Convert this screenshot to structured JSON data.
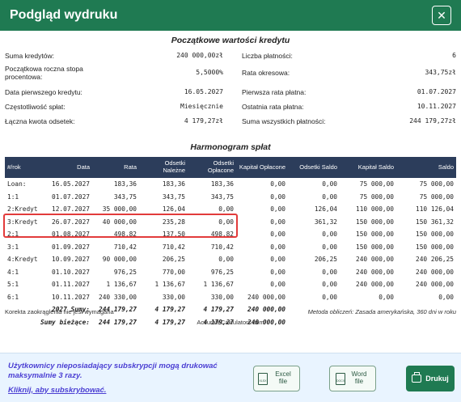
{
  "window": {
    "title": "Podgląd wydruku",
    "close_glyph": "✕"
  },
  "summary": {
    "title": "Początkowe wartości kredytu",
    "left": [
      {
        "label": "Suma kredytów:",
        "value": "240 000,00zł"
      },
      {
        "label": "Początkowa roczna stopa procentowa:",
        "value": "5,5000%"
      },
      {
        "label": "Data pierwszego kredytu:",
        "value": "16.05.2027"
      },
      {
        "label": "Częstotliwość spłat:",
        "value": "Miesięcznie"
      },
      {
        "label": "Łączna kwota odsetek:",
        "value": "4 179,27zł"
      }
    ],
    "right": [
      {
        "label": "Liczba płatności:",
        "value": "6"
      },
      {
        "label": "Rata okresowa:",
        "value": "343,75zł"
      },
      {
        "label": "Pierwsza rata płatna:",
        "value": "01.07.2027"
      },
      {
        "label": "Ostatnia rata płatna:",
        "value": "10.11.2027"
      },
      {
        "label": "Suma wszystkich płatności:",
        "value": "244 179,27zł"
      }
    ]
  },
  "schedule": {
    "title": "Harmonogram spłat",
    "headers": [
      "#/rok",
      "Data",
      "Rata",
      "Odsetki Należne",
      "Odsetki Opłacone",
      "Kapitał Opłacone",
      "Odsetki Saldo",
      "Kapitał Saldo",
      "Saldo"
    ],
    "rows": [
      [
        "Loan:",
        "16.05.2027",
        "183,36",
        "183,36",
        "183,36",
        "0,00",
        "0,00",
        "75 000,00",
        "75 000,00"
      ],
      [
        "1:1",
        "01.07.2027",
        "343,75",
        "343,75",
        "343,75",
        "0,00",
        "0,00",
        "75 000,00",
        "75 000,00"
      ],
      [
        "2:Kredyt",
        "12.07.2027",
        "35 000,00",
        "126,04",
        "0,00",
        "0,00",
        "126,04",
        "110 000,00",
        "110 126,04"
      ],
      [
        "3:Kredyt",
        "26.07.2027",
        "40 000,00",
        "235,28",
        "0,00",
        "0,00",
        "361,32",
        "150 000,00",
        "150 361,32"
      ],
      [
        "2:1",
        "01.08.2027",
        "498,82",
        "137,50",
        "498,82",
        "0,00",
        "0,00",
        "150 000,00",
        "150 000,00"
      ],
      [
        "3:1",
        "01.09.2027",
        "710,42",
        "710,42",
        "710,42",
        "0,00",
        "0,00",
        "150 000,00",
        "150 000,00"
      ],
      [
        "4:Kredyt",
        "10.09.2027",
        "90 000,00",
        "206,25",
        "0,00",
        "0,00",
        "206,25",
        "240 000,00",
        "240 206,25"
      ],
      [
        "4:1",
        "01.10.2027",
        "976,25",
        "770,00",
        "976,25",
        "0,00",
        "0,00",
        "240 000,00",
        "240 000,00"
      ],
      [
        "5:1",
        "01.11.2027",
        "1 136,67",
        "1 136,67",
        "1 136,67",
        "0,00",
        "0,00",
        "240 000,00",
        "240 000,00"
      ],
      [
        "6:1",
        "10.11.2027",
        "240 330,00",
        "330,00",
        "330,00",
        "240 000,00",
        "0,00",
        "0,00",
        "0,00"
      ]
    ],
    "sums": [
      {
        "label": "2027 Sumy:",
        "values": [
          "244 179,27",
          "4 179,27",
          "4 179,27",
          "240 000,00"
        ]
      },
      {
        "label": "Sumy bieżące:",
        "values": [
          "244 179,27",
          "4 179,27",
          "4 179,27",
          "240 000,00"
        ]
      }
    ]
  },
  "footer": {
    "rounding_note": "Korekta zaokrąglenia nie jest wymagana",
    "method_note": "Metoda obliczeń: Zasada amerykańska, 360 dni w roku",
    "site": "AccurateCalculators.com"
  },
  "bottom": {
    "notice": "Użytkownicy nieposiadający subskrypcji mogą drukować maksymalnie 3 razy.",
    "subscribe_link": "Kliknij, aby subskrybować.",
    "excel_label": "Excel file",
    "excel_icon_text": "XLSX",
    "word_label": "Word file",
    "word_icon_text": "DOCX",
    "print_label": "Drukuj"
  },
  "colors": {
    "header_green": "#1f7a52",
    "table_header": "#2c3d5b",
    "highlight_red": "#e23b3b",
    "notice_purple": "#4b3fd3"
  }
}
